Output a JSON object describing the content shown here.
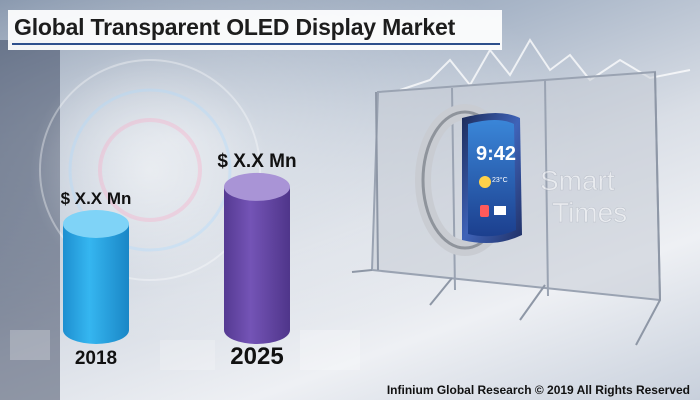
{
  "title": "Global Transparent OLED Display Market",
  "footer": "Infinium Global Research © 2019 All Rights Reserved",
  "product_art": {
    "watch_time": "9:42",
    "watch_temp": "23°C",
    "display_text_line1": "Smart",
    "display_text_line2": "Times"
  },
  "colors": {
    "bar_2018": "#2aa8e6",
    "bar_2025": "#6a4aa8",
    "title_rule": "#2d4f8c"
  },
  "chart_data": {
    "type": "bar",
    "categories": [
      "2018",
      "2025"
    ],
    "value_labels": [
      "$ X.X Mn",
      "$ X.X Mn"
    ],
    "relative_values": [
      1.0,
      1.35
    ],
    "title": "Global Transparent OLED Display Market",
    "grid": false,
    "legend": "none",
    "style": "cylinder"
  }
}
